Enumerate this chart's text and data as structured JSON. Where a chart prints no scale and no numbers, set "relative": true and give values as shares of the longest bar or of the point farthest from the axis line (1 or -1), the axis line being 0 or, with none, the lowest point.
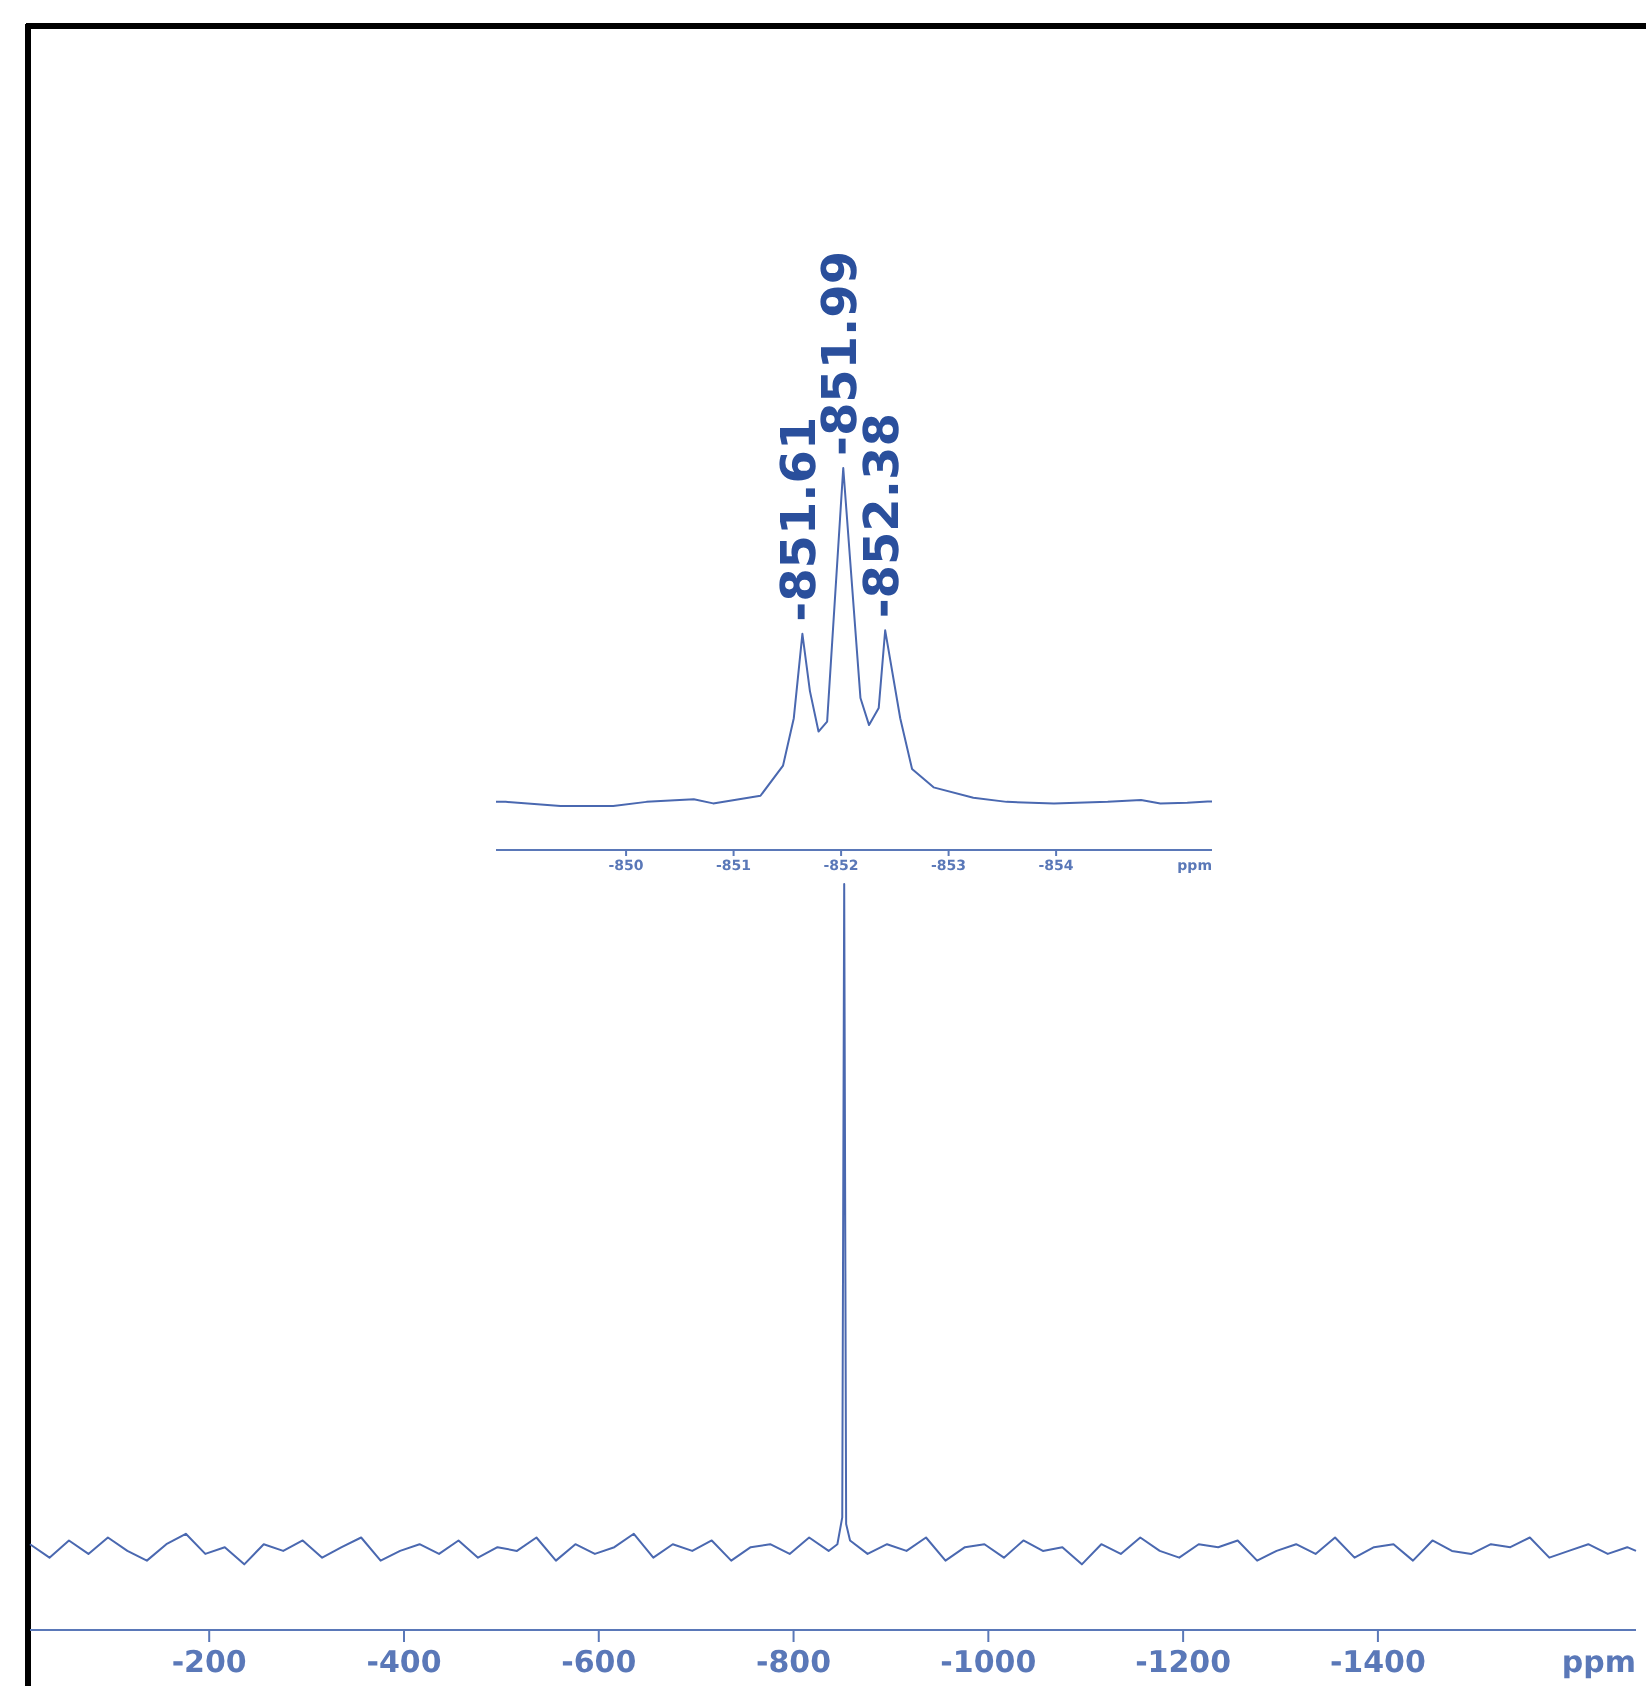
{
  "chart_data": [
    {
      "type": "line",
      "relative": true,
      "xlabel": "ppm",
      "xlim": [
        -16,
        -1665
      ],
      "xticks": [
        -200,
        -400,
        -600,
        -800,
        -1000,
        -1200,
        -1400
      ],
      "x": [
        -16,
        -36,
        -56,
        -76,
        -96,
        -116,
        -136,
        -156,
        -176,
        -196,
        -216,
        -236,
        -256,
        -276,
        -296,
        -316,
        -336,
        -356,
        -376,
        -396,
        -416,
        -436,
        -456,
        -476,
        -496,
        -516,
        -536,
        -556,
        -576,
        -596,
        -616,
        -636,
        -656,
        -676,
        -696,
        -716,
        -736,
        -756,
        -776,
        -796,
        -816,
        -836,
        -845,
        -850,
        -852,
        -854,
        -858,
        -876,
        -896,
        -916,
        -936,
        -956,
        -976,
        -996,
        -1016,
        -1036,
        -1056,
        -1076,
        -1096,
        -1116,
        -1136,
        -1156,
        -1176,
        -1196,
        -1216,
        -1236,
        -1256,
        -1276,
        -1296,
        -1316,
        -1336,
        -1356,
        -1376,
        -1396,
        -1416,
        -1436,
        -1456,
        -1476,
        -1496,
        -1516,
        -1536,
        -1556,
        -1576,
        -1596,
        -1616,
        -1636,
        -1656,
        -1665
      ],
      "series": [
        {
          "color": "#4a68b0",
          "values": [
            0.115,
            0.097,
            0.12,
            0.102,
            0.124,
            0.106,
            0.093,
            0.115,
            0.129,
            0.102,
            0.111,
            0.088,
            0.115,
            0.106,
            0.12,
            0.097,
            0.111,
            0.124,
            0.093,
            0.106,
            0.115,
            0.102,
            0.12,
            0.097,
            0.111,
            0.106,
            0.124,
            0.093,
            0.115,
            0.102,
            0.111,
            0.129,
            0.097,
            0.115,
            0.106,
            0.12,
            0.093,
            0.111,
            0.115,
            0.102,
            0.124,
            0.106,
            0.115,
            0.151,
            1,
            0.142,
            0.12,
            0.102,
            0.115,
            0.106,
            0.124,
            0.093,
            0.111,
            0.115,
            0.097,
            0.12,
            0.106,
            0.111,
            0.088,
            0.115,
            0.102,
            0.124,
            0.106,
            0.097,
            0.115,
            0.111,
            0.12,
            0.093,
            0.106,
            0.115,
            0.102,
            0.124,
            0.097,
            0.111,
            0.115,
            0.093,
            0.12,
            0.106,
            0.102,
            0.115,
            0.111,
            0.124,
            0.097,
            0.106,
            0.115,
            0.102,
            0.111,
            0.106
          ]
        }
      ]
    },
    {
      "type": "line",
      "relative": true,
      "xlabel": "ppm",
      "xlim": [
        -848.79,
        -855.45
      ],
      "xticks": [
        -850,
        -851,
        -852,
        -853,
        -854
      ],
      "x": [
        -848.79,
        -848.88,
        -849.39,
        -849.88,
        -850.19,
        -850.63,
        -850.81,
        -851.25,
        -851.46,
        -851.56,
        -851.64,
        -851.71,
        -851.79,
        -851.87,
        -852.02,
        -852.18,
        -852.26,
        -852.35,
        -852.41,
        -852.55,
        -852.66,
        -852.86,
        -853.23,
        -853.54,
        -853.98,
        -854.48,
        -854.79,
        -854.97,
        -855.22,
        -855.41,
        -855.45
      ],
      "series": [
        {
          "color": "#4a68b0",
          "values": [
            0.126,
            0.126,
            0.115,
            0.115,
            0.126,
            0.133,
            0.122,
            0.142,
            0.221,
            0.345,
            0.566,
            0.416,
            0.31,
            0.336,
            1,
            0.398,
            0.327,
            0.372,
            0.575,
            0.345,
            0.212,
            0.164,
            0.137,
            0.126,
            0.122,
            0.126,
            0.131,
            0.122,
            0.124,
            0.127,
            0.127
          ]
        }
      ],
      "annotations": [
        {
          "text": "-851.61",
          "x": -851.61,
          "y": 0.566
        },
        {
          "text": "-851.99",
          "x": -851.99,
          "y": 1
        },
        {
          "text": "-852.38",
          "x": -852.38,
          "y": 0.575
        }
      ]
    }
  ]
}
